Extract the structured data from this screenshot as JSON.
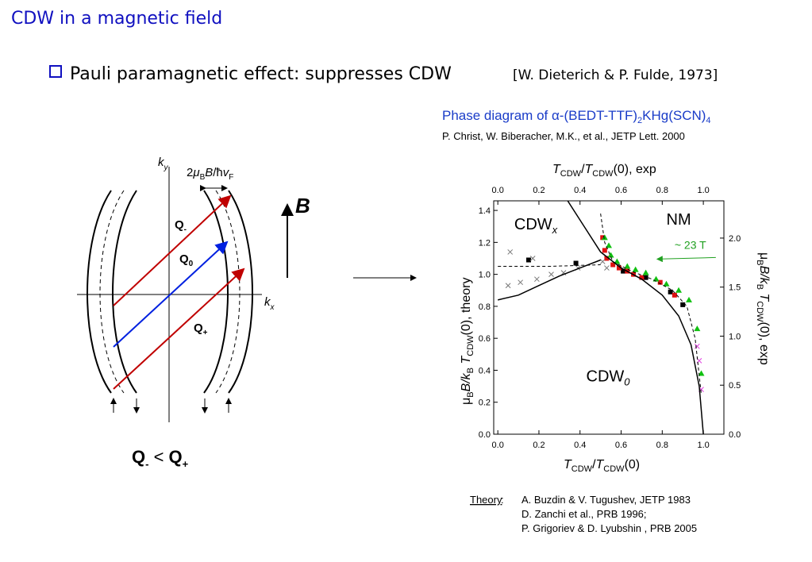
{
  "slide": {
    "title": "CDW in a magnetic field",
    "bullet": "Pauli paramagnetic effect:  suppresses CDW",
    "reference": "[W. Dieterich & P. Fulde, 1973]"
  },
  "diagram": {
    "ky": [
      "k",
      "y"
    ],
    "kx": [
      "k",
      "x"
    ],
    "width_label": [
      "2",
      "μ",
      "B",
      "B",
      "/ħ",
      "v",
      "F"
    ],
    "q_minus": [
      "Q",
      "-"
    ],
    "q_zero": [
      "Q",
      "0"
    ],
    "q_plus": [
      "Q",
      "+"
    ],
    "field": "B",
    "relation": [
      "Q",
      "-",
      " < ",
      "Q",
      "+"
    ]
  },
  "caption": [
    "Phase diagram of ",
    "α",
    "-(BEDT-TTF)",
    "2",
    "KHg(SCN)",
    "4"
  ],
  "citation": "P. Christ, W. Biberacher, M.K., et al., JETP Lett. 2000",
  "chart_data": {
    "type": "scatter",
    "x2_label": [
      "T",
      "CDW",
      "/",
      "T",
      "CDW",
      "(0), exp"
    ],
    "x_label": [
      "T",
      "CDW",
      "/",
      "T",
      "CDW",
      "(0)"
    ],
    "y_label": [
      "μ",
      "B",
      "B/k",
      "B",
      " T",
      "CDW",
      "(0), theory"
    ],
    "y2_label": [
      "μ",
      "B",
      "B/k",
      "B",
      " T",
      "CDW",
      "(0), exp"
    ],
    "xlim": [
      -0.02,
      1.1
    ],
    "x2lim": [
      -0.02,
      1.1
    ],
    "ylim": [
      0,
      1.46
    ],
    "y2lim": [
      0,
      2.38
    ],
    "xticks": [
      {
        "value": 0,
        "label": "0.0"
      },
      {
        "value": 0.2,
        "label": "0.2"
      },
      {
        "value": 0.4,
        "label": "0.4"
      },
      {
        "value": 0.6,
        "label": "0.6"
      },
      {
        "value": 0.8,
        "label": "0.8"
      },
      {
        "value": 1,
        "label": "1.0"
      }
    ],
    "x2ticks": [
      {
        "value": 0,
        "label": "0.0"
      },
      {
        "value": 0.2,
        "label": "0.2"
      },
      {
        "value": 0.4,
        "label": "0.4"
      },
      {
        "value": 0.6,
        "label": "0.6"
      },
      {
        "value": 0.8,
        "label": "0.8"
      },
      {
        "value": 1,
        "label": "1.0"
      }
    ],
    "yticks": [
      {
        "value": 0,
        "label": "0.0"
      },
      0.2,
      0.4,
      0.6,
      0.8,
      {
        "value": 1,
        "label": "1.0"
      },
      1.2,
      1.4
    ],
    "y2ticks": [
      {
        "value": 0,
        "label": "0.0"
      },
      0.5,
      {
        "value": 1,
        "label": "1.0"
      },
      1.5,
      {
        "value": 2,
        "label": "2.0"
      }
    ],
    "annotations": [
      {
        "text": [
          "CDW",
          "x"
        ],
        "x": 0.08,
        "y": 1.28
      },
      {
        "text": [
          "NM"
        ],
        "x": 0.82,
        "y": 1.31
      },
      {
        "text": [
          "CDW",
          "0"
        ],
        "x": 0.43,
        "y": 0.33
      },
      {
        "text": [
          "~ 23 T"
        ],
        "x": 0.86,
        "y": 1.16,
        "color": "#20a020"
      }
    ],
    "series": [
      {
        "mode": "markers",
        "marker": "square",
        "color": "#000000",
        "x": [
          0.15,
          0.38,
          0.61,
          0.72,
          0.84,
          0.9
        ],
        "values": [
          1.09,
          1.07,
          1.02,
          0.98,
          0.89,
          0.81
        ]
      },
      {
        "mode": "markers",
        "marker": "square",
        "color": "#e01010",
        "x": [
          0.51,
          0.52,
          0.53,
          0.56,
          0.59,
          0.63,
          0.66,
          0.7,
          0.79,
          0.86
        ],
        "values": [
          1.23,
          1.15,
          1.1,
          1.06,
          1.04,
          1.02,
          1.0,
          0.98,
          0.95,
          0.87
        ]
      },
      {
        "mode": "markers",
        "marker": "triangle",
        "color": "#10c010",
        "x": [
          0.52,
          0.54,
          0.55,
          0.58,
          0.63,
          0.67,
          0.72,
          0.77,
          0.82,
          0.88,
          0.93,
          0.97,
          0.99
        ],
        "values": [
          1.23,
          1.18,
          1.12,
          1.08,
          1.05,
          1.03,
          1.01,
          0.97,
          0.94,
          0.9,
          0.84,
          0.66,
          0.38
        ]
      },
      {
        "mode": "markers",
        "marker": "cross",
        "color": "#777777",
        "x": [
          0.06,
          0.17,
          0.05,
          0.11,
          0.19,
          0.26,
          0.32,
          0.39,
          0.53,
          0.51
        ],
        "values": [
          1.14,
          1.1,
          0.93,
          0.95,
          0.97,
          1.0,
          1.01,
          1.04,
          1.04,
          1.08
        ]
      },
      {
        "mode": "markers",
        "marker": "cross",
        "color": "#e040e0",
        "x": [
          0.97,
          0.98,
          0.99
        ],
        "values": [
          0.55,
          0.46,
          0.28
        ]
      },
      {
        "mode": "line",
        "dash": false,
        "color": "#000000",
        "x": [
          0,
          0.1,
          0.2,
          0.3,
          0.4,
          0.5
        ],
        "values": [
          0.84,
          0.87,
          0.93,
          0.99,
          1.04,
          1.09
        ]
      },
      {
        "mode": "line",
        "dash": false,
        "color": "#000000",
        "x": [
          0.34,
          0.42,
          0.5,
          0.6,
          0.7,
          0.8,
          0.88,
          0.94,
          0.98,
          1.0
        ],
        "values": [
          1.46,
          1.3,
          1.14,
          1.04,
          0.97,
          0.87,
          0.74,
          0.56,
          0.3,
          0
        ]
      },
      {
        "mode": "line",
        "dash": true,
        "color": "#000000",
        "x": [
          0,
          0.25,
          0.5
        ],
        "values": [
          1.05,
          1.05,
          1.06
        ]
      },
      {
        "mode": "line",
        "dash": true,
        "color": "#000000",
        "x": [
          0.5,
          0.52,
          0.56,
          0.65,
          0.75,
          0.85,
          0.92,
          0.96,
          0.99
        ],
        "values": [
          1.38,
          1.2,
          1.08,
          1.02,
          0.97,
          0.9,
          0.8,
          0.6,
          0.25
        ]
      }
    ]
  },
  "theory": {
    "label": "Theory",
    "refs": [
      "A. Buzdin & V. Tugushev, JETP 1983",
      "D. Zanchi et al., PRB 1996;",
      "P. Grigoriev & D. Lyubshin , PRB 2005"
    ]
  }
}
